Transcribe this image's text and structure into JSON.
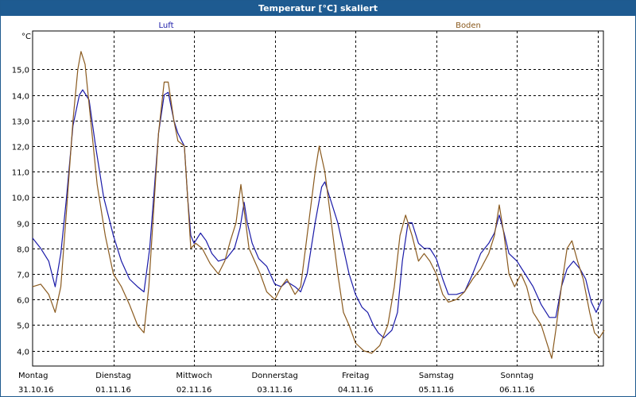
{
  "window": {
    "title": "Temperatur [°C] skaliert"
  },
  "chart_data": {
    "type": "line",
    "ylabel": "°C",
    "ylim": [
      3.4,
      16.5
    ],
    "yticks": [
      "4,0",
      "5,0",
      "6,0",
      "7,0",
      "8,0",
      "9,0",
      "10,0",
      "11,0",
      "12,0",
      "13,0",
      "14,0",
      "15,0"
    ],
    "ytick_values": [
      4,
      5,
      6,
      7,
      8,
      9,
      10,
      11,
      12,
      13,
      14,
      15
    ],
    "xlim": [
      0,
      7.07
    ],
    "x_categories": [
      {
        "day": "Montag",
        "date": "31.10.16"
      },
      {
        "day": "Dienstag",
        "date": "01.11.16"
      },
      {
        "day": "Mittwoch",
        "date": "02.11.16"
      },
      {
        "day": "Donnerstag",
        "date": "03.11.16"
      },
      {
        "day": "Freitag",
        "date": "04.11.16"
      },
      {
        "day": "Samstag",
        "date": "05.11.16"
      },
      {
        "day": "Sonntag",
        "date": "06.11.16"
      }
    ],
    "grid": true,
    "series": [
      {
        "name": "Luft",
        "color": "#1a1aa8",
        "points": [
          [
            0,
            8.4
          ],
          [
            0.1,
            8.0
          ],
          [
            0.2,
            7.5
          ],
          [
            0.28,
            6.5
          ],
          [
            0.35,
            7.8
          ],
          [
            0.42,
            10.0
          ],
          [
            0.5,
            12.8
          ],
          [
            0.58,
            14.0
          ],
          [
            0.62,
            14.2
          ],
          [
            0.7,
            13.8
          ],
          [
            0.78,
            12.0
          ],
          [
            0.88,
            10.0
          ],
          [
            1.0,
            8.5
          ],
          [
            1.1,
            7.5
          ],
          [
            1.2,
            6.8
          ],
          [
            1.3,
            6.5
          ],
          [
            1.38,
            6.3
          ],
          [
            1.45,
            8.0
          ],
          [
            1.5,
            10.0
          ],
          [
            1.56,
            12.5
          ],
          [
            1.63,
            14.0
          ],
          [
            1.68,
            14.1
          ],
          [
            1.75,
            13.0
          ],
          [
            1.8,
            12.5
          ],
          [
            1.88,
            12.0
          ],
          [
            1.92,
            10.0
          ],
          [
            1.96,
            8.5
          ],
          [
            2.0,
            8.2
          ],
          [
            2.08,
            8.6
          ],
          [
            2.15,
            8.3
          ],
          [
            2.22,
            7.8
          ],
          [
            2.3,
            7.5
          ],
          [
            2.4,
            7.6
          ],
          [
            2.5,
            8.0
          ],
          [
            2.57,
            8.8
          ],
          [
            2.62,
            9.8
          ],
          [
            2.66,
            9.0
          ],
          [
            2.72,
            8.2
          ],
          [
            2.8,
            7.6
          ],
          [
            2.9,
            7.3
          ],
          [
            3.0,
            6.6
          ],
          [
            3.08,
            6.5
          ],
          [
            3.15,
            6.7
          ],
          [
            3.25,
            6.5
          ],
          [
            3.32,
            6.3
          ],
          [
            3.4,
            7.0
          ],
          [
            3.5,
            9.0
          ],
          [
            3.58,
            10.4
          ],
          [
            3.62,
            10.6
          ],
          [
            3.7,
            9.8
          ],
          [
            3.78,
            9.0
          ],
          [
            3.85,
            8.0
          ],
          [
            3.92,
            7.0
          ],
          [
            4.0,
            6.2
          ],
          [
            4.08,
            5.7
          ],
          [
            4.15,
            5.5
          ],
          [
            4.22,
            5.0
          ],
          [
            4.28,
            4.7
          ],
          [
            4.35,
            4.5
          ],
          [
            4.45,
            4.8
          ],
          [
            4.52,
            5.5
          ],
          [
            4.58,
            7.5
          ],
          [
            4.65,
            9.0
          ],
          [
            4.7,
            9.0
          ],
          [
            4.78,
            8.2
          ],
          [
            4.85,
            8.0
          ],
          [
            4.92,
            8.0
          ],
          [
            5.0,
            7.6
          ],
          [
            5.08,
            6.8
          ],
          [
            5.15,
            6.2
          ],
          [
            5.25,
            6.2
          ],
          [
            5.35,
            6.3
          ],
          [
            5.45,
            7.0
          ],
          [
            5.55,
            7.8
          ],
          [
            5.65,
            8.2
          ],
          [
            5.72,
            8.6
          ],
          [
            5.78,
            9.3
          ],
          [
            5.84,
            8.6
          ],
          [
            5.9,
            7.8
          ],
          [
            6.0,
            7.5
          ],
          [
            6.1,
            7.0
          ],
          [
            6.2,
            6.5
          ],
          [
            6.3,
            5.8
          ],
          [
            6.4,
            5.3
          ],
          [
            6.48,
            5.3
          ],
          [
            6.55,
            6.5
          ],
          [
            6.62,
            7.2
          ],
          [
            6.7,
            7.5
          ],
          [
            6.78,
            7.2
          ],
          [
            6.85,
            6.8
          ],
          [
            6.92,
            5.9
          ],
          [
            6.98,
            5.5
          ],
          [
            7.05,
            6.0
          ]
        ]
      },
      {
        "name": "Boden",
        "color": "#8a5a1e",
        "points": [
          [
            0,
            6.5
          ],
          [
            0.1,
            6.6
          ],
          [
            0.2,
            6.2
          ],
          [
            0.28,
            5.5
          ],
          [
            0.35,
            6.5
          ],
          [
            0.42,
            9.5
          ],
          [
            0.5,
            13.0
          ],
          [
            0.56,
            15.0
          ],
          [
            0.6,
            15.7
          ],
          [
            0.65,
            15.2
          ],
          [
            0.72,
            13.0
          ],
          [
            0.8,
            10.5
          ],
          [
            0.9,
            8.5
          ],
          [
            1.0,
            7.0
          ],
          [
            1.1,
            6.5
          ],
          [
            1.2,
            5.8
          ],
          [
            1.3,
            5.0
          ],
          [
            1.38,
            4.7
          ],
          [
            1.44,
            6.5
          ],
          [
            1.5,
            9.5
          ],
          [
            1.56,
            12.5
          ],
          [
            1.63,
            14.5
          ],
          [
            1.68,
            14.5
          ],
          [
            1.75,
            13.0
          ],
          [
            1.8,
            12.2
          ],
          [
            1.88,
            12.0
          ],
          [
            1.92,
            10.0
          ],
          [
            1.96,
            8.0
          ],
          [
            2.02,
            8.2
          ],
          [
            2.1,
            8.0
          ],
          [
            2.2,
            7.4
          ],
          [
            2.3,
            7.0
          ],
          [
            2.38,
            7.5
          ],
          [
            2.45,
            8.3
          ],
          [
            2.52,
            9.0
          ],
          [
            2.58,
            10.5
          ],
          [
            2.62,
            9.5
          ],
          [
            2.68,
            8.0
          ],
          [
            2.75,
            7.5
          ],
          [
            2.82,
            7.0
          ],
          [
            2.9,
            6.3
          ],
          [
            3.0,
            6.0
          ],
          [
            3.08,
            6.5
          ],
          [
            3.15,
            6.8
          ],
          [
            3.25,
            6.2
          ],
          [
            3.32,
            6.5
          ],
          [
            3.4,
            8.5
          ],
          [
            3.5,
            11.0
          ],
          [
            3.55,
            12.0
          ],
          [
            3.62,
            11.0
          ],
          [
            3.7,
            9.0
          ],
          [
            3.78,
            7.0
          ],
          [
            3.85,
            5.5
          ],
          [
            3.92,
            5.0
          ],
          [
            4.0,
            4.3
          ],
          [
            4.1,
            4.0
          ],
          [
            4.2,
            3.9
          ],
          [
            4.3,
            4.2
          ],
          [
            4.4,
            5.0
          ],
          [
            4.48,
            6.5
          ],
          [
            4.55,
            8.5
          ],
          [
            4.62,
            9.3
          ],
          [
            4.7,
            8.5
          ],
          [
            4.78,
            7.5
          ],
          [
            4.85,
            7.8
          ],
          [
            4.92,
            7.5
          ],
          [
            5.0,
            7.0
          ],
          [
            5.08,
            6.2
          ],
          [
            5.15,
            5.9
          ],
          [
            5.25,
            6.0
          ],
          [
            5.35,
            6.3
          ],
          [
            5.45,
            6.8
          ],
          [
            5.55,
            7.2
          ],
          [
            5.65,
            7.8
          ],
          [
            5.72,
            8.5
          ],
          [
            5.78,
            9.7
          ],
          [
            5.84,
            8.5
          ],
          [
            5.9,
            7.0
          ],
          [
            5.97,
            6.5
          ],
          [
            6.05,
            7.0
          ],
          [
            6.12,
            6.5
          ],
          [
            6.2,
            5.5
          ],
          [
            6.3,
            5.0
          ],
          [
            6.38,
            4.2
          ],
          [
            6.43,
            3.7
          ],
          [
            6.48,
            4.8
          ],
          [
            6.55,
            6.5
          ],
          [
            6.62,
            8.0
          ],
          [
            6.68,
            8.3
          ],
          [
            6.75,
            7.5
          ],
          [
            6.82,
            6.8
          ],
          [
            6.9,
            5.5
          ],
          [
            6.96,
            4.7
          ],
          [
            7.02,
            4.5
          ],
          [
            7.08,
            4.8
          ]
        ]
      }
    ]
  }
}
